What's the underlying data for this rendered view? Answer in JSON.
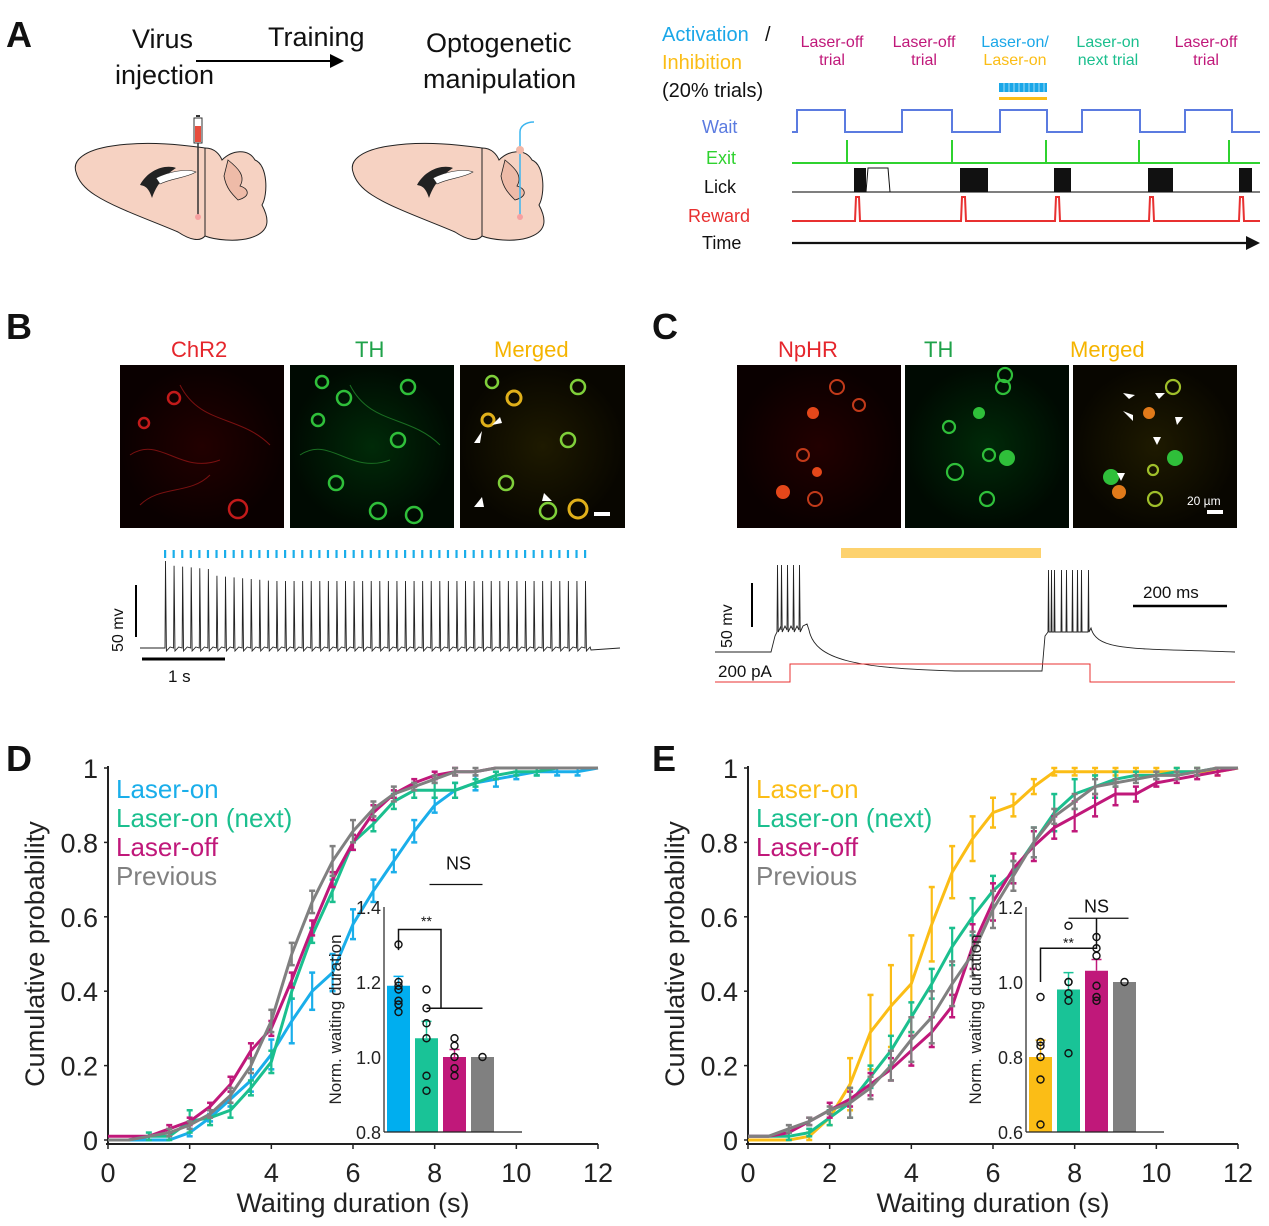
{
  "panels": {
    "A": {
      "label": "A",
      "steps": [
        "Virus",
        "injection",
        "Training",
        "Optogenetic",
        "manipulation"
      ],
      "trial_header": {
        "activation": "Activation",
        "slash": "/",
        "inhibition": "Inhibition",
        "pct": "(20% trials)"
      },
      "trials": [
        {
          "l1": "Laser-off",
          "l2": "trial",
          "color": "#c0187a"
        },
        {
          "l1": "Laser-off",
          "l2": "trial",
          "color": "#c0187a"
        },
        {
          "l1": "Laser-on/",
          "l2": "Laser-on",
          "color": "#1aa7e8",
          "color2": "#fbbd16"
        },
        {
          "l1": "Laser-on",
          "l2": "next trial",
          "color": "#1bbf8e"
        },
        {
          "l1": "Laser-off",
          "l2": "trial",
          "color": "#c0187a"
        }
      ],
      "rows": [
        {
          "label": "Wait",
          "color": "#5b7be0"
        },
        {
          "label": "Exit",
          "color": "#2fd22f"
        },
        {
          "label": "Lick",
          "color": "#111111"
        },
        {
          "label": "Reward",
          "color": "#e83030"
        },
        {
          "label": "Time",
          "color": "#111111"
        }
      ]
    },
    "B": {
      "label": "B",
      "images": [
        {
          "title": "ChR2",
          "color": "#e5262c"
        },
        {
          "title": "TH",
          "color": "#1fa24a"
        },
        {
          "title": "Merged",
          "color": "#f5b400"
        }
      ],
      "scale_v": "50 mv",
      "scale_t": "1 s",
      "pulse_count": 50,
      "spike_count": 50
    },
    "C": {
      "label": "C",
      "images": [
        {
          "title": "NpHR",
          "color": "#e5262c"
        },
        {
          "title": "TH",
          "color": "#1fa24a"
        },
        {
          "title": "Merged",
          "color": "#f5b400"
        }
      ],
      "scale_bar_label": "20 µm",
      "scale_v": "50 mv",
      "scale_t": "200 ms",
      "current_label": "200 pA"
    }
  },
  "chart_data": [
    {
      "panel": "D",
      "type": "line",
      "title": "",
      "xlabel": "Waiting duration (s)",
      "ylabel": "Cumulative probability",
      "xlim": [
        0,
        12
      ],
      "ylim": [
        0,
        1
      ],
      "xticks": [
        "0",
        "2",
        "4",
        "6",
        "8",
        "10",
        "12"
      ],
      "yticks": [
        "0",
        "0.2",
        "0.4",
        "0.6",
        "0.8",
        "1"
      ],
      "legend_position": "top-left",
      "x": [
        0,
        0.5,
        1,
        1.5,
        2,
        2.5,
        3,
        3.5,
        4,
        4.5,
        5,
        5.5,
        6,
        6.5,
        7,
        7.5,
        8,
        8.5,
        9,
        9.5,
        10,
        10.5,
        11,
        11.5,
        12
      ],
      "series": [
        {
          "name": "Laser-on",
          "color": "#1aaeea",
          "values": [
            0.0,
            0.0,
            0.0,
            0.0,
            0.02,
            0.06,
            0.11,
            0.16,
            0.23,
            0.32,
            0.4,
            0.45,
            0.58,
            0.67,
            0.75,
            0.83,
            0.9,
            0.94,
            0.96,
            0.97,
            0.98,
            0.99,
            0.99,
            0.99,
            1.0
          ],
          "err": [
            0,
            0,
            0,
            0,
            0.01,
            0.01,
            0.02,
            0.03,
            0.04,
            0.06,
            0.05,
            0.05,
            0.04,
            0.03,
            0.03,
            0.03,
            0.02,
            0.02,
            0.02,
            0.02,
            0.01,
            0.01,
            0.01,
            0.01,
            0
          ]
        },
        {
          "name": "Laser-on (next)",
          "color": "#1bbf8e",
          "values": [
            0.0,
            0.0,
            0.01,
            0.01,
            0.05,
            0.06,
            0.08,
            0.14,
            0.21,
            0.4,
            0.55,
            0.67,
            0.8,
            0.85,
            0.91,
            0.94,
            0.94,
            0.94,
            0.96,
            0.98,
            0.99,
            0.99,
            1.0,
            1.0,
            1.0
          ],
          "err": [
            0,
            0,
            0.01,
            0.01,
            0.03,
            0.02,
            0.02,
            0.02,
            0.03,
            0.02,
            0.02,
            0.03,
            0.02,
            0.02,
            0.02,
            0.02,
            0.02,
            0.02,
            0.01,
            0.01,
            0.01,
            0.01,
            0,
            0,
            0
          ]
        },
        {
          "name": "Laser-off",
          "color": "#c0187a",
          "values": [
            0.01,
            0.01,
            0.01,
            0.03,
            0.05,
            0.09,
            0.15,
            0.24,
            0.3,
            0.43,
            0.57,
            0.7,
            0.8,
            0.88,
            0.93,
            0.96,
            0.98,
            0.99,
            0.99,
            1.0,
            1.0,
            1.0,
            1.0,
            1.0,
            1.0
          ],
          "err": [
            0,
            0,
            0,
            0.01,
            0.01,
            0.01,
            0.02,
            0.02,
            0.02,
            0.02,
            0.02,
            0.02,
            0.02,
            0.02,
            0.01,
            0.01,
            0.01,
            0.01,
            0,
            0,
            0,
            0,
            0,
            0,
            0
          ]
        },
        {
          "name": "Previous",
          "color": "#808080",
          "values": [
            0.0,
            0.0,
            0.01,
            0.02,
            0.04,
            0.07,
            0.12,
            0.2,
            0.32,
            0.5,
            0.64,
            0.75,
            0.83,
            0.89,
            0.93,
            0.95,
            0.97,
            0.99,
            0.99,
            1.0,
            1.0,
            1.0,
            1.0,
            1.0,
            1.0
          ],
          "err": [
            0,
            0,
            0,
            0.01,
            0.01,
            0.01,
            0.02,
            0.02,
            0.03,
            0.03,
            0.03,
            0.04,
            0.03,
            0.02,
            0.02,
            0.01,
            0.01,
            0.01,
            0.01,
            0,
            0,
            0,
            0,
            0,
            0
          ]
        }
      ],
      "inset": {
        "type": "bar",
        "ylabel": "Norm. waiting duration",
        "ylim": [
          0.8,
          1.4
        ],
        "yticks": [
          "0.8",
          "1.0",
          "1.2",
          "1.4"
        ],
        "categories": [
          "Laser-on",
          "Laser-on (next)",
          "Laser-off",
          "Previous"
        ],
        "values": [
          1.19,
          1.05,
          1.0,
          1.0
        ],
        "err": [
          0.025,
          0.045,
          0.02,
          0
        ],
        "colors": [
          "#00aeef",
          "#19c397",
          "#c0187a",
          "#808080"
        ],
        "points": [
          [
            1.3,
            1.2,
            1.19,
            1.18,
            1.15,
            1.14,
            1.12
          ],
          [
            1.18,
            1.13,
            1.09,
            1.05,
            0.95,
            0.91
          ],
          [
            1.05,
            1.03,
            1.0,
            0.97,
            0.95
          ],
          [
            1.0
          ]
        ],
        "annotations": [
          {
            "text": "**",
            "between": [
              0,
              1.5
            ]
          },
          {
            "text": "NS",
            "between": [
              1,
              3
            ]
          }
        ]
      }
    },
    {
      "panel": "E",
      "type": "line",
      "title": "",
      "xlabel": "Waiting duration (s)",
      "ylabel": "Cumulative probability",
      "xlim": [
        0,
        12
      ],
      "ylim": [
        0,
        1
      ],
      "xticks": [
        "0",
        "2",
        "4",
        "6",
        "8",
        "10",
        "12"
      ],
      "yticks": [
        "0",
        "0.2",
        "0.4",
        "0.6",
        "0.8",
        "1"
      ],
      "legend_position": "top-left",
      "x": [
        0,
        0.5,
        1,
        1.5,
        2,
        2.5,
        3,
        3.5,
        4,
        4.5,
        5,
        5.5,
        6,
        6.5,
        7,
        7.5,
        8,
        8.5,
        9,
        9.5,
        10,
        10.5,
        11,
        11.5,
        12
      ],
      "series": [
        {
          "name": "Laser-on",
          "color": "#fbbd16",
          "values": [
            0.0,
            0.0,
            0.0,
            0.01,
            0.06,
            0.15,
            0.29,
            0.36,
            0.42,
            0.58,
            0.72,
            0.81,
            0.88,
            0.9,
            0.95,
            0.99,
            0.99,
            0.99,
            0.99,
            0.99,
            0.99,
            0.99,
            0.99,
            0.99,
            1.0
          ],
          "err": [
            0,
            0,
            0,
            0.01,
            0.02,
            0.07,
            0.1,
            0.11,
            0.13,
            0.1,
            0.07,
            0.06,
            0.04,
            0.03,
            0.02,
            0.01,
            0.01,
            0.01,
            0.01,
            0.01,
            0.01,
            0.01,
            0.01,
            0.01,
            0
          ]
        },
        {
          "name": "Laser-on (next)",
          "color": "#1bbf8e",
          "values": [
            0.01,
            0.01,
            0.01,
            0.02,
            0.06,
            0.1,
            0.17,
            0.24,
            0.33,
            0.42,
            0.52,
            0.6,
            0.67,
            0.72,
            0.8,
            0.88,
            0.93,
            0.95,
            0.97,
            0.98,
            0.98,
            0.99,
            0.99,
            1.0,
            1.0
          ],
          "err": [
            0,
            0,
            0.01,
            0.01,
            0.02,
            0.04,
            0.03,
            0.04,
            0.04,
            0.04,
            0.05,
            0.05,
            0.04,
            0.03,
            0.04,
            0.05,
            0.04,
            0.03,
            0.02,
            0.01,
            0.01,
            0.01,
            0.01,
            0,
            0
          ]
        },
        {
          "name": "Laser-off",
          "color": "#c0187a",
          "values": [
            0.01,
            0.01,
            0.02,
            0.05,
            0.08,
            0.11,
            0.15,
            0.19,
            0.24,
            0.29,
            0.36,
            0.52,
            0.64,
            0.73,
            0.79,
            0.84,
            0.87,
            0.9,
            0.93,
            0.93,
            0.96,
            0.97,
            0.98,
            0.99,
            1.0
          ],
          "err": [
            0,
            0,
            0,
            0.01,
            0.02,
            0.02,
            0.03,
            0.03,
            0.04,
            0.04,
            0.03,
            0.06,
            0.05,
            0.04,
            0.04,
            0.03,
            0.04,
            0.03,
            0.03,
            0.02,
            0.01,
            0.01,
            0.01,
            0.01,
            0
          ]
        },
        {
          "name": "Previous",
          "color": "#808080",
          "values": [
            0.01,
            0.01,
            0.03,
            0.05,
            0.08,
            0.1,
            0.14,
            0.2,
            0.27,
            0.33,
            0.42,
            0.5,
            0.62,
            0.71,
            0.8,
            0.87,
            0.91,
            0.95,
            0.96,
            0.97,
            0.98,
            0.98,
            0.99,
            1.0,
            1.0
          ],
          "err": [
            0,
            0,
            0.01,
            0.01,
            0.01,
            0.04,
            0.03,
            0.04,
            0.06,
            0.07,
            0.06,
            0.06,
            0.05,
            0.04,
            0.04,
            0.02,
            0.02,
            0.02,
            0.01,
            0.01,
            0.01,
            0.01,
            0.01,
            0,
            0
          ]
        }
      ],
      "inset": {
        "type": "bar",
        "ylabel": "Norm. waiting duration",
        "ylim": [
          0.6,
          1.2
        ],
        "yticks": [
          "0.6",
          "0.8",
          "1.0",
          "1.2"
        ],
        "categories": [
          "Laser-on",
          "Laser-on (next)",
          "Laser-off",
          "Previous"
        ],
        "values": [
          0.8,
          0.98,
          1.03,
          1.0
        ],
        "err": [
          0.045,
          0.045,
          0.03,
          0
        ],
        "colors": [
          "#fbbd16",
          "#19c397",
          "#c0187a",
          "#808080"
        ],
        "points": [
          [
            0.96,
            0.84,
            0.83,
            0.8,
            0.74,
            0.62
          ],
          [
            1.15,
            1.0,
            1.0,
            0.97,
            0.95,
            0.81
          ],
          [
            1.12,
            1.09,
            1.07,
            0.99,
            0.96,
            0.95
          ],
          [
            1.0
          ]
        ],
        "annotations": [
          {
            "text": "**",
            "between": [
              0,
              2
            ]
          },
          {
            "text": "NS",
            "between": [
              1,
              3
            ]
          }
        ]
      }
    }
  ]
}
